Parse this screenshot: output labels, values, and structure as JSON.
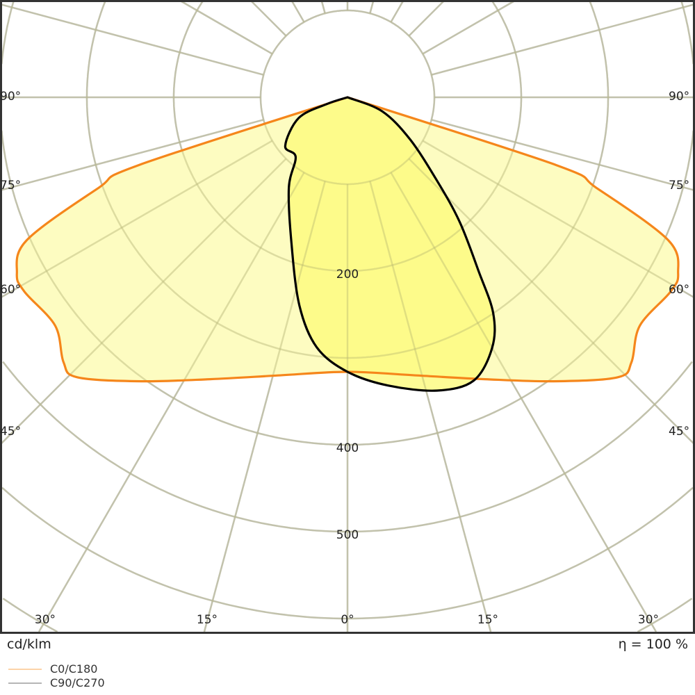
{
  "chart_data": {
    "type": "polar",
    "unit_label": "cd/klm",
    "efficiency_label": "η = 100 %",
    "radial_ticks": [
      100,
      200,
      300,
      400,
      500,
      600,
      700
    ],
    "radial_tick_labels": [
      "200",
      "400",
      "500"
    ],
    "radial_tick_label_values": [
      200,
      400,
      500
    ],
    "rmax": 700,
    "angle_grid_step_deg": 15,
    "angle_labels_left": [
      "90°",
      "75°",
      "60°",
      "45°"
    ],
    "angle_labels_right": [
      "90°",
      "75°",
      "60°",
      "45°"
    ],
    "angle_labels_bottom": [
      "30°",
      "15°",
      "0°",
      "15°",
      "30°"
    ],
    "grid": true,
    "legend_placement": "bottom-left",
    "series": [
      {
        "name": "C0/C180",
        "stroke": "#f5861b",
        "fill": "#fdfcb6",
        "legend_color": "#fcd3a8",
        "points": [
          [
            -90,
            0
          ],
          [
            -72,
            253
          ],
          [
            -70,
            305
          ],
          [
            -66,
            404
          ],
          [
            -62,
            431
          ],
          [
            -59,
            434
          ],
          [
            -52,
            427
          ],
          [
            -47,
            447
          ],
          [
            -44,
            448
          ],
          [
            -36,
            404
          ],
          [
            -26,
            361
          ],
          [
            -14,
            330
          ],
          [
            0,
            316
          ],
          [
            14,
            330
          ],
          [
            26,
            361
          ],
          [
            36,
            404
          ],
          [
            44,
            448
          ],
          [
            47,
            447
          ],
          [
            52,
            427
          ],
          [
            59,
            434
          ],
          [
            62,
            431
          ],
          [
            66,
            404
          ],
          [
            70,
            305
          ],
          [
            72,
            253
          ],
          [
            90,
            0
          ]
        ]
      },
      {
        "name": "C90/C270",
        "stroke": "#000000",
        "fill": "#fdfa7c",
        "legend_color": "#b5b5b5",
        "points": [
          [
            -90,
            0
          ],
          [
            -72,
            25
          ],
          [
            -67,
            61
          ],
          [
            -52,
            91
          ],
          [
            -41,
            91
          ],
          [
            -33,
            124
          ],
          [
            -21,
            180
          ],
          [
            -13,
            246
          ],
          [
            -7,
            290
          ],
          [
            0,
            316
          ],
          [
            8,
            335
          ],
          [
            17,
            353
          ],
          [
            24,
            357
          ],
          [
            30,
            333
          ],
          [
            34,
            300
          ],
          [
            37,
            251
          ],
          [
            42,
            193
          ],
          [
            47,
            141
          ],
          [
            56,
            87
          ],
          [
            68,
            43
          ],
          [
            90,
            0
          ]
        ]
      }
    ]
  },
  "colors": {
    "grid": "#cccccc",
    "frame": "#333333"
  }
}
